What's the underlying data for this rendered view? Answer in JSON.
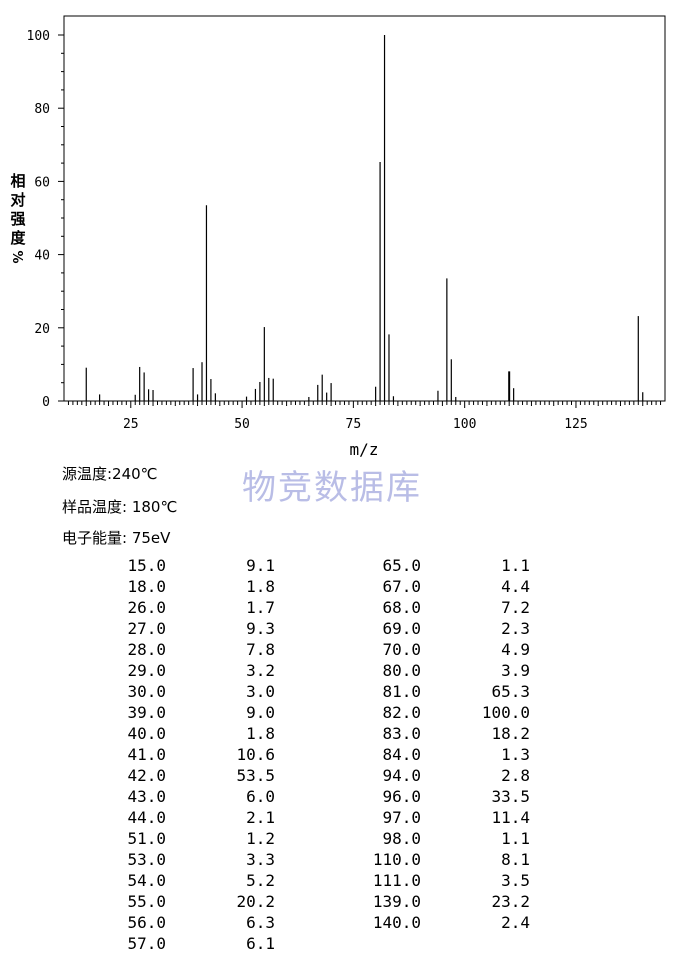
{
  "chart_data": {
    "type": "bar",
    "ylabel": "相对强度%",
    "xlabel": "m/z",
    "xlim": [
      10,
      145
    ],
    "ylim": [
      0,
      100
    ],
    "xticks": [
      25,
      50,
      75,
      100,
      125
    ],
    "yticks": [
      0,
      20,
      40,
      60,
      80,
      100
    ],
    "x": [
      15,
      18,
      26,
      27,
      28,
      29,
      30,
      39,
      40,
      41,
      42,
      43,
      44,
      51,
      53,
      54,
      55,
      56,
      57,
      65,
      67,
      68,
      69,
      70,
      80,
      81,
      82,
      83,
      84,
      94,
      96,
      97,
      98,
      110,
      111,
      139,
      140
    ],
    "values": [
      9.1,
      1.8,
      1.7,
      9.3,
      7.8,
      3.2,
      3.0,
      9.0,
      1.8,
      10.6,
      53.5,
      6.0,
      2.1,
      1.2,
      3.3,
      5.2,
      20.2,
      6.3,
      6.1,
      1.1,
      4.4,
      7.2,
      2.3,
      4.9,
      3.9,
      65.3,
      100.0,
      18.2,
      1.3,
      2.8,
      33.5,
      11.4,
      1.1,
      8.1,
      3.5,
      23.2,
      2.4
    ]
  },
  "info": {
    "source_temp": "源温度:240℃",
    "sample_temp": "样品温度: 180℃",
    "electron_energy": "电子能量: 75eV"
  },
  "watermark": "物竞数据库",
  "table": {
    "left": [
      [
        "15.0",
        "9.1"
      ],
      [
        "18.0",
        "1.8"
      ],
      [
        "26.0",
        "1.7"
      ],
      [
        "27.0",
        "9.3"
      ],
      [
        "28.0",
        "7.8"
      ],
      [
        "29.0",
        "3.2"
      ],
      [
        "30.0",
        "3.0"
      ],
      [
        "39.0",
        "9.0"
      ],
      [
        "40.0",
        "1.8"
      ],
      [
        "41.0",
        "10.6"
      ],
      [
        "42.0",
        "53.5"
      ],
      [
        "43.0",
        "6.0"
      ],
      [
        "44.0",
        "2.1"
      ],
      [
        "51.0",
        "1.2"
      ],
      [
        "53.0",
        "3.3"
      ],
      [
        "54.0",
        "5.2"
      ],
      [
        "55.0",
        "20.2"
      ],
      [
        "56.0",
        "6.3"
      ],
      [
        "57.0",
        "6.1"
      ]
    ],
    "right": [
      [
        "65.0",
        "1.1"
      ],
      [
        "67.0",
        "4.4"
      ],
      [
        "68.0",
        "7.2"
      ],
      [
        "69.0",
        "2.3"
      ],
      [
        "70.0",
        "4.9"
      ],
      [
        "80.0",
        "3.9"
      ],
      [
        "81.0",
        "65.3"
      ],
      [
        "82.0",
        "100.0"
      ],
      [
        "83.0",
        "18.2"
      ],
      [
        "84.0",
        "1.3"
      ],
      [
        "94.0",
        "2.8"
      ],
      [
        "96.0",
        "33.5"
      ],
      [
        "97.0",
        "11.4"
      ],
      [
        "98.0",
        "1.1"
      ],
      [
        "110.0",
        "8.1"
      ],
      [
        "111.0",
        "3.5"
      ],
      [
        "139.0",
        "23.2"
      ],
      [
        "140.0",
        "2.4"
      ]
    ]
  }
}
